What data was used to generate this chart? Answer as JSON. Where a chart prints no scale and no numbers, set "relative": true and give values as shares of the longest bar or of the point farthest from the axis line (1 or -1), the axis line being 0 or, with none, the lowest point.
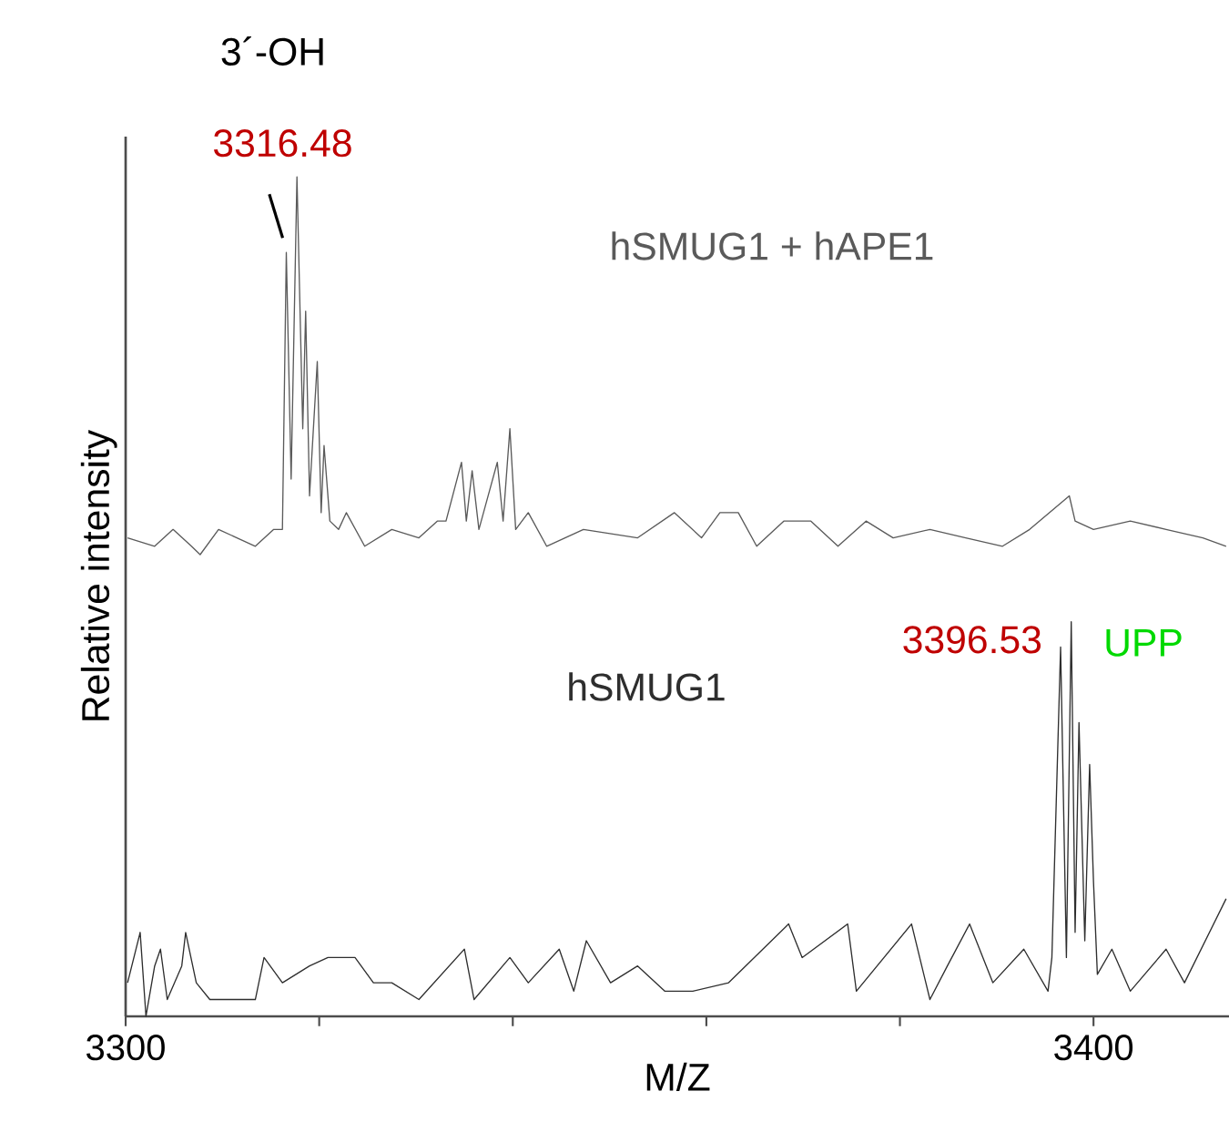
{
  "chart_data": {
    "type": "line",
    "relative": true,
    "xlabel": "M/Z",
    "ylabel": "Relative intensity",
    "xlim": [
      3300,
      3414
    ],
    "xticks": [
      3300,
      {
        "value": 3320,
        "label": null
      },
      {
        "value": 3340,
        "label": null
      },
      {
        "value": 3360,
        "label": null
      },
      {
        "value": 3380,
        "label": null
      },
      3400
    ],
    "tick_labels": "x",
    "marker": "none",
    "line_style": "solid",
    "series": [
      {
        "name": "hSMUG1 + hAPE1",
        "color": "#5a5a5a",
        "x": [
          3300.2,
          3303.0,
          3304.9,
          3306.8,
          3307.7,
          3309.6,
          3311.5,
          3313.4,
          3315.3,
          3316.2,
          3316.6,
          3317.1,
          3317.7,
          3318.3,
          3318.6,
          3319.0,
          3319.8,
          3320.2,
          3320.5,
          3321.1,
          3322.0,
          3322.8,
          3324.7,
          3327.5,
          3330.3,
          3332.2,
          3333.1,
          3334.7,
          3335.2,
          3335.8,
          3336.5,
          3338.4,
          3339.0,
          3339.7,
          3340.3,
          3341.6,
          3343.5,
          3347.3,
          3352.9,
          3356.7,
          3359.5,
          3361.4,
          3363.3,
          3365.2,
          3368.0,
          3370.8,
          3373.6,
          3376.5,
          3379.3,
          3383.1,
          3386.8,
          3390.6,
          3393.4,
          3397.5,
          3398.1,
          3400.0,
          3403.8,
          3407.5,
          3411.3,
          3413.7
        ],
        "values": [
          0.57,
          0.56,
          0.58,
          0.56,
          0.55,
          0.58,
          0.57,
          0.56,
          0.58,
          0.58,
          0.91,
          0.64,
          1,
          0.7,
          0.84,
          0.62,
          0.78,
          0.6,
          0.68,
          0.59,
          0.58,
          0.6,
          0.56,
          0.58,
          0.57,
          0.59,
          0.59,
          0.66,
          0.59,
          0.65,
          0.58,
          0.66,
          0.59,
          0.7,
          0.58,
          0.6,
          0.56,
          0.58,
          0.57,
          0.6,
          0.57,
          0.6,
          0.6,
          0.56,
          0.59,
          0.59,
          0.56,
          0.59,
          0.57,
          0.58,
          0.57,
          0.56,
          0.58,
          0.62,
          0.59,
          0.58,
          0.59,
          0.58,
          0.57,
          0.56
        ]
      },
      {
        "name": "hSMUG1",
        "color": "#2e2e2e",
        "x": [
          3300.2,
          3301.5,
          3302.1,
          3303.0,
          3303.6,
          3304.3,
          3305.8,
          3306.2,
          3307.3,
          3308.7,
          3310.5,
          3313.4,
          3314.3,
          3316.2,
          3319.0,
          3320.9,
          3323.7,
          3325.6,
          3327.5,
          3330.3,
          3335.0,
          3336.0,
          3339.7,
          3341.6,
          3344.8,
          3346.3,
          3347.6,
          3350.1,
          3352.9,
          3355.7,
          3358.6,
          3362.3,
          3368.5,
          3369.9,
          3374.6,
          3375.5,
          3381.2,
          3383.1,
          3384.9,
          3387.2,
          3389.6,
          3392.8,
          3395.3,
          3395.7,
          3396.6,
          3397.2,
          3397.7,
          3398.1,
          3398.5,
          3399.1,
          3399.6,
          3400.0,
          3400.4,
          3401.9,
          3403.8,
          3407.5,
          3409.4,
          3413.7
        ],
        "values": [
          0.04,
          0.1,
          0.0,
          0.06,
          0.08,
          0.02,
          0.06,
          0.1,
          0.04,
          0.02,
          0.02,
          0.02,
          0.07,
          0.04,
          0.06,
          0.07,
          0.07,
          0.04,
          0.04,
          0.02,
          0.08,
          0.02,
          0.07,
          0.04,
          0.08,
          0.03,
          0.09,
          0.04,
          0.06,
          0.03,
          0.03,
          0.04,
          0.11,
          0.07,
          0.11,
          0.03,
          0.11,
          0.02,
          0.06,
          0.11,
          0.04,
          0.08,
          0.03,
          0.07,
          0.44,
          0.07,
          0.47,
          0.1,
          0.35,
          0.09,
          0.3,
          0.16,
          0.05,
          0.08,
          0.03,
          0.08,
          0.04,
          0.14
        ]
      }
    ],
    "annotations": [
      "3´-OH",
      {
        "text": "3316.48",
        "x": 3316.6,
        "y": 0.91
      },
      {
        "text": "3396.53",
        "x": 3396.6,
        "y": 0.44
      },
      "UPP"
    ]
  }
}
